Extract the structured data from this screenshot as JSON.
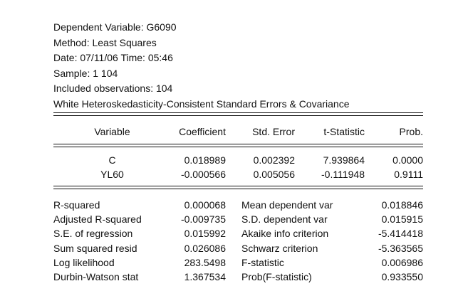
{
  "header": {
    "lines": [
      "Dependent Variable: G6090",
      "Method: Least Squares",
      "Date: 07/11/06   Time: 05:46",
      "Sample: 1 104",
      "Included observations: 104",
      "White Heteroskedasticity-Consistent Standard Errors & Covariance"
    ]
  },
  "coef_table": {
    "columns": [
      "Variable",
      "Coefficient",
      "Std. Error",
      "t-Statistic",
      "Prob."
    ],
    "rows": [
      {
        "variable": "C",
        "coefficient": "0.018989",
        "std_error": "0.002392",
        "t_stat": "7.939864",
        "prob": "0.0000"
      },
      {
        "variable": "YL60",
        "coefficient": "-0.000566",
        "std_error": "0.005056",
        "t_stat": "-0.111948",
        "prob": "0.9111"
      }
    ]
  },
  "stats": {
    "left": [
      {
        "label": "R-squared",
        "value": "0.000068"
      },
      {
        "label": "Adjusted R-squared",
        "value": "-0.009735"
      },
      {
        "label": "S.E. of regression",
        "value": "0.015992"
      },
      {
        "label": "Sum squared resid",
        "value": "0.026086"
      },
      {
        "label": "Log likelihood",
        "value": "283.5498"
      },
      {
        "label": "Durbin-Watson stat",
        "value": "1.367534"
      }
    ],
    "right": [
      {
        "label": "Mean dependent var",
        "value": "0.018846"
      },
      {
        "label": "S.D. dependent var",
        "value": "0.015915"
      },
      {
        "label": "Akaike info criterion",
        "value": "-5.414418"
      },
      {
        "label": "Schwarz criterion",
        "value": "-5.363565"
      },
      {
        "label": "F-statistic",
        "value": "0.006986"
      },
      {
        "label": "Prob(F-statistic)",
        "value": "0.933550"
      }
    ]
  }
}
